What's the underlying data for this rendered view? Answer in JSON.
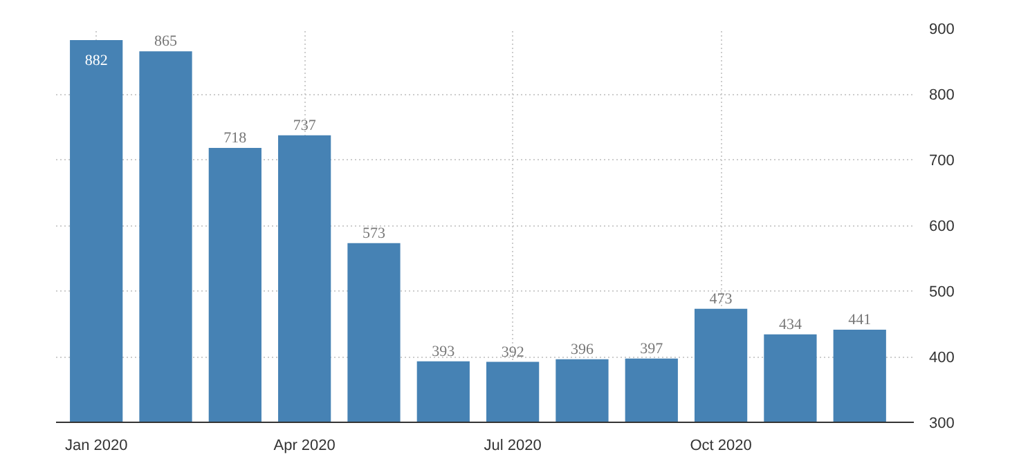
{
  "chart_data": {
    "type": "bar",
    "categories": [
      "Jan 2020",
      null,
      null,
      "Apr 2020",
      null,
      null,
      "Jul 2020",
      null,
      null,
      "Oct 2020",
      null,
      null
    ],
    "values": [
      882,
      865,
      718,
      737,
      573,
      393,
      392,
      396,
      397,
      473,
      434,
      441
    ],
    "color": "#4682b4",
    "ylim": [
      300,
      900
    ],
    "yticks": [
      300,
      400,
      500,
      600,
      700,
      800,
      900
    ],
    "grid": true,
    "data_labels": true
  }
}
